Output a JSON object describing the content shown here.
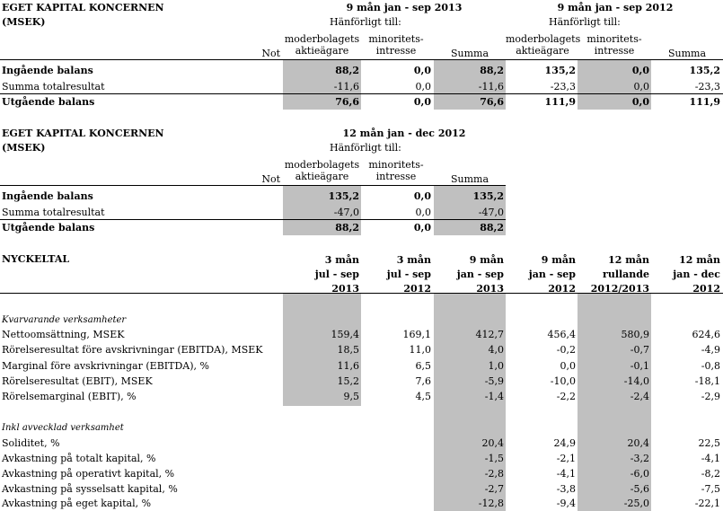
{
  "t1": {
    "title": "EGET KAPITAL KONCERNEN",
    "unit": "(MSEK)",
    "period1": "9 mån jan - sep 2013",
    "period2": "9 mån jan - sep 2012",
    "attrib": "Hänförligt till:",
    "col_not": "Not",
    "col_parent_1": "moderbolagets",
    "col_parent_2": "aktieägare",
    "col_minority_1": "minoritets-",
    "col_minority_2": "intresse",
    "col_sum": "Summa",
    "rows": [
      {
        "label": "Ingående balans",
        "bold": true,
        "v": [
          "88,2",
          "0,0",
          "88,2",
          "135,2",
          "0,0",
          "135,2"
        ]
      },
      {
        "label": "Summa totalresultat",
        "bold": false,
        "v": [
          "-11,6",
          "0,0",
          "-11,6",
          "-23,3",
          "0,0",
          "-23,3"
        ]
      },
      {
        "label": "Utgående balans",
        "bold": true,
        "v": [
          "76,6",
          "0,0",
          "76,6",
          "111,9",
          "0,0",
          "111,9"
        ]
      }
    ]
  },
  "t2": {
    "title": "EGET KAPITAL KONCERNEN",
    "unit": "(MSEK)",
    "period1": "12 mån jan - dec 2012",
    "attrib": "Hänförligt till:",
    "col_not": "Not",
    "col_parent_1": "moderbolagets",
    "col_parent_2": "aktieägare",
    "col_minority_1": "minoritets-",
    "col_minority_2": "intresse",
    "col_sum": "Summa",
    "rows": [
      {
        "label": "Ingående balans",
        "bold": true,
        "v": [
          "135,2",
          "0,0",
          "135,2"
        ]
      },
      {
        "label": "Summa totalresultat",
        "bold": false,
        "v": [
          "-47,0",
          "0,0",
          "-47,0"
        ]
      },
      {
        "label": "Utgående balans",
        "bold": true,
        "v": [
          "88,2",
          "0,0",
          "88,2"
        ]
      }
    ]
  },
  "t3": {
    "title": "NYCKELTAL",
    "headers": [
      [
        "3 mån",
        "jul - sep",
        "2013"
      ],
      [
        "3 mån",
        "jul - sep",
        "2012"
      ],
      [
        "9 mån",
        "jan - sep",
        "2013"
      ],
      [
        "9 mån",
        "jan - sep",
        "2012"
      ],
      [
        "12 mån",
        "rullande",
        "2012/2013"
      ],
      [
        "12 mån",
        "jan - dec",
        "2012"
      ]
    ],
    "section1": "Kvarvarande verksamheter",
    "rows1": [
      {
        "label": "Nettoomsättning, MSEK",
        "v": [
          "159,4",
          "169,1",
          "412,7",
          "456,4",
          "580,9",
          "624,6"
        ]
      },
      {
        "label": "Rörelseresultat före avskrivningar (EBITDA), MSEK",
        "v": [
          "18,5",
          "11,0",
          "4,0",
          "-0,2",
          "-0,7",
          "-4,9"
        ]
      },
      {
        "label": "Marginal före avskrivningar (EBITDA), %",
        "v": [
          "11,6",
          "6,5",
          "1,0",
          "0,0",
          "-0,1",
          "-0,8"
        ]
      },
      {
        "label": "Rörelseresultat (EBIT), MSEK",
        "v": [
          "15,2",
          "7,6",
          "-5,9",
          "-10,0",
          "-14,0",
          "-18,1"
        ]
      },
      {
        "label": "Rörelsemarginal (EBIT), %",
        "v": [
          "9,5",
          "4,5",
          "-1,4",
          "-2,2",
          "-2,4",
          "-2,9"
        ]
      }
    ],
    "section2": "Inkl avvecklad verksamhet",
    "rows2": [
      {
        "label": "Soliditet, %",
        "v": [
          "20,4",
          "24,9",
          "20,4",
          "22,5"
        ]
      },
      {
        "label": "Avkastning på totalt kapital, %",
        "v": [
          "-1,5",
          "-2,1",
          "-3,2",
          "-4,1"
        ]
      },
      {
        "label": "Avkastning på operativt kapital, %",
        "v": [
          "-2,8",
          "-4,1",
          "-6,0",
          "-8,2"
        ]
      },
      {
        "label": "Avkastning på sysselsatt kapital, %",
        "v": [
          "-2,7",
          "-3,8",
          "-5,6",
          "-7,5"
        ]
      },
      {
        "label": "Avkastning på eget kapital, %",
        "v": [
          "-12,8",
          "-9,4",
          "-25,0",
          "-22,1"
        ]
      }
    ]
  }
}
